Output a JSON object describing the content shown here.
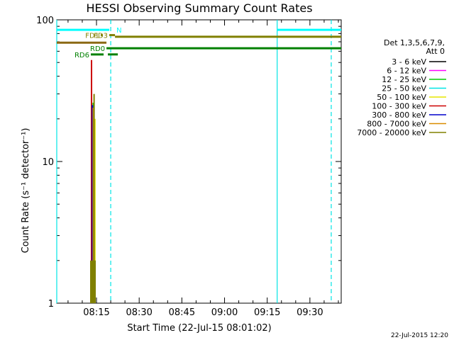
{
  "chart_data": {
    "type": "line",
    "title": "HESSI Observing Summary Count Rates",
    "xlabel": "Start Time (22-Jul-15 08:01:02)",
    "ylabel": "Count Rate (s⁻¹ detector⁻¹)",
    "yscale": "log",
    "ylim": [
      1,
      100
    ],
    "xlim": [
      "08:01:02",
      "09:41:00"
    ],
    "x_ticks": [
      "08:15",
      "08:30",
      "08:45",
      "09:00",
      "09:15",
      "09:30"
    ],
    "y_ticks": [
      "1",
      "10",
      "100"
    ],
    "legend_header": [
      "Det 1,3,5,6,7,9,",
      "Att 0"
    ],
    "series": [
      {
        "name": "3 - 6 keV",
        "color": "#000000"
      },
      {
        "name": "6 - 12 keV",
        "color": "#ff00ff"
      },
      {
        "name": "12 - 25 keV",
        "color": "#00cc00"
      },
      {
        "name": "25 - 50 keV",
        "color": "#00e5e5"
      },
      {
        "name": "50 - 100 keV",
        "color": "#e5e500"
      },
      {
        "name": "100 - 300 keV",
        "color": "#cc0000"
      },
      {
        "name": "300 - 800 keV",
        "color": "#0000cc"
      },
      {
        "name": "800 - 7000 keV",
        "color": "#d98c00"
      },
      {
        "name": "7000 - 20000 keV",
        "color": "#808000"
      }
    ],
    "spike": {
      "x": "08:15",
      "values": [
        {
          "series": "3 - 6 keV",
          "peak": 28
        },
        {
          "series": "6 - 12 keV",
          "peak": 22
        },
        {
          "series": "12 - 25 keV",
          "peak": 26
        },
        {
          "series": "25 - 50 keV",
          "peak": 18
        },
        {
          "series": "50 - 100 keV",
          "peak": 20
        },
        {
          "series": "100 - 300 keV",
          "peak": 52
        },
        {
          "series": "300 - 800 keV",
          "peak": 25
        },
        {
          "series": "800 - 7000 keV",
          "peak": 24
        },
        {
          "series": "7000 - 20000 keV",
          "peak": 30
        }
      ]
    },
    "state_bars": [
      {
        "label": "N",
        "color": "#00ffff",
        "value": 85,
        "segments": [
          [
            "08:01:02",
            "08:19:30"
          ],
          [
            "09:18:30",
            "09:41:00"
          ]
        ]
      },
      {
        "label": "FD1",
        "color": "#808000",
        "value": 78,
        "segments": [
          [
            "08:16:30",
            "08:17:00"
          ]
        ]
      },
      {
        "label": "FD3",
        "color": "#808000",
        "value": 78,
        "segments": [
          [
            "08:19:30",
            "08:21:30"
          ]
        ]
      },
      {
        "label": "",
        "color": "#808000",
        "value": 76,
        "segments": [
          [
            "08:21:30",
            "09:41:00"
          ]
        ]
      },
      {
        "label": "",
        "color": "#8b6914",
        "value": 69,
        "segments": [
          [
            "08:01:02",
            "08:18:30"
          ]
        ]
      },
      {
        "label": "RD0",
        "color": "#008000",
        "value": 63,
        "segments": [
          [
            "08:18:30",
            "09:41:00"
          ]
        ]
      },
      {
        "label": "RD6",
        "color": "#008000",
        "value": 57,
        "segments": [
          [
            "08:13:00",
            "08:17:30"
          ],
          [
            "08:19:00",
            "08:22:30"
          ]
        ]
      }
    ],
    "markers": [
      {
        "time": "08:20:00",
        "style": "dashed",
        "color": "#00e5e5"
      },
      {
        "time": "09:18:30",
        "style": "solid",
        "color": "#00e5e5"
      },
      {
        "time": "09:37:30",
        "style": "dashed",
        "color": "#00e5e5"
      },
      {
        "time": "08:01:02",
        "style": "solid",
        "color": "#00e5e5"
      }
    ]
  },
  "timestamp": "22-Jul-2015 12:20"
}
